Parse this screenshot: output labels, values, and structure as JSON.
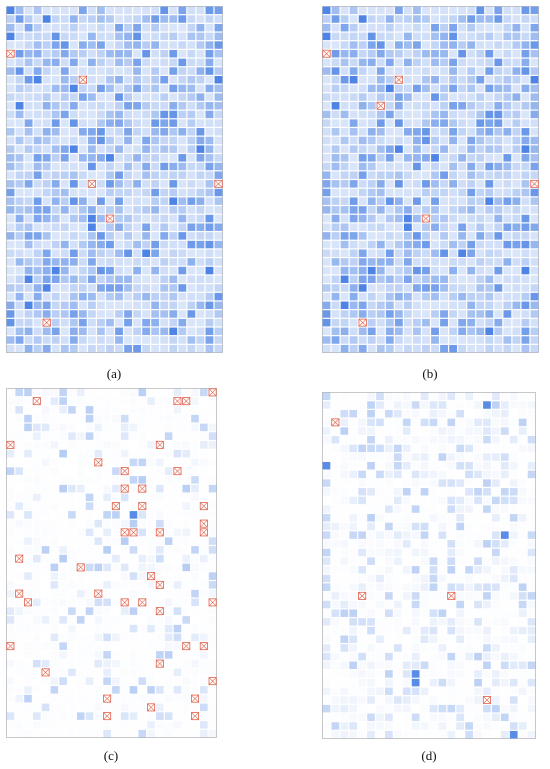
{
  "chart_data": [
    {
      "type": "heatmap",
      "label": "a",
      "rows": 40,
      "cols": 24,
      "density": 1.0,
      "intensity": [
        0.18,
        0.75
      ],
      "missing": [
        [
          5,
          0
        ],
        [
          8,
          8
        ],
        [
          20,
          9
        ],
        [
          20,
          23
        ],
        [
          24,
          11
        ],
        [
          36,
          4
        ]
      ]
    },
    {
      "type": "heatmap",
      "label": "b",
      "rows": 40,
      "cols": 24,
      "density": 1.0,
      "intensity": [
        0.18,
        0.75
      ],
      "missing": [
        [
          5,
          0
        ],
        [
          8,
          8
        ],
        [
          11,
          6
        ],
        [
          20,
          23
        ],
        [
          24,
          11
        ],
        [
          36,
          4
        ]
      ]
    },
    {
      "type": "heatmap",
      "label": "c",
      "rows": 40,
      "cols": 24,
      "density": 0.32,
      "intensity": [
        0.02,
        0.35
      ],
      "missing": [
        [
          0,
          23
        ],
        [
          1,
          3
        ],
        [
          1,
          19
        ],
        [
          1,
          20
        ],
        [
          6,
          0
        ],
        [
          6,
          17
        ],
        [
          8,
          10
        ],
        [
          9,
          13
        ],
        [
          9,
          19
        ],
        [
          11,
          13
        ],
        [
          11,
          15
        ],
        [
          13,
          12
        ],
        [
          13,
          15
        ],
        [
          13,
          22
        ],
        [
          15,
          22
        ],
        [
          16,
          13
        ],
        [
          16,
          14
        ],
        [
          16,
          17
        ],
        [
          16,
          22
        ],
        [
          19,
          1
        ],
        [
          20,
          8
        ],
        [
          21,
          16
        ],
        [
          22,
          17
        ],
        [
          23,
          1
        ],
        [
          24,
          2
        ],
        [
          23,
          10
        ],
        [
          24,
          13
        ],
        [
          24,
          15
        ],
        [
          24,
          23
        ],
        [
          25,
          17
        ],
        [
          29,
          0
        ],
        [
          29,
          20
        ],
        [
          29,
          22
        ],
        [
          31,
          17
        ],
        [
          32,
          4
        ],
        [
          33,
          23
        ],
        [
          35,
          11
        ],
        [
          35,
          21
        ],
        [
          36,
          16
        ],
        [
          37,
          11
        ],
        [
          37,
          21
        ]
      ]
    },
    {
      "type": "heatmap",
      "label": "d",
      "rows": 40,
      "cols": 24,
      "density": 0.55,
      "intensity": [
        0.03,
        0.32
      ],
      "missing": [
        [
          3,
          1
        ],
        [
          23,
          4
        ],
        [
          23,
          14
        ],
        [
          35,
          18
        ]
      ]
    }
  ],
  "labels": {
    "a": "(a)",
    "b": "(b)",
    "c": "(c)",
    "d": "(d)"
  },
  "colors": {
    "cell": "#2f6fe0",
    "missing": "#e0604a",
    "grid": "#ffffff",
    "frame": "#c8c8c8"
  }
}
